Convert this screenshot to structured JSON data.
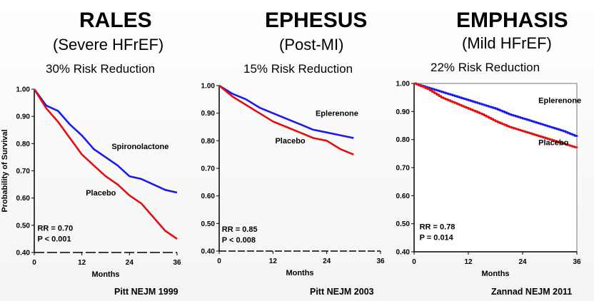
{
  "panels": [
    {
      "title": "RALES",
      "subtitle": "(Severe HFrEF)",
      "risk": "30% Risk Reduction",
      "reference": "Pitt NEJM 1999"
    },
    {
      "title": "EPHESUS",
      "subtitle": "(Post-MI)",
      "risk": "15% Risk Reduction",
      "reference": "Pitt NEJM 2003"
    },
    {
      "title": "EMPHASIS",
      "subtitle": "(Mild HFrEF)",
      "risk": "22% Risk Reduction",
      "reference": "Zannad NEJM 2011"
    }
  ],
  "colors": {
    "treatment": "#1a1aee",
    "placebo": "#e01010",
    "background": "#ffffff"
  },
  "chart_data": [
    {
      "type": "line",
      "title": "RALES",
      "xlabel": "Months",
      "ylabel": "Probability of Survival",
      "xlim": [
        0,
        36
      ],
      "ylim": [
        0.4,
        1.0
      ],
      "xticks": [
        "0",
        "12",
        "24",
        "36"
      ],
      "yticks": [
        "0.40",
        "0.50",
        "0.60",
        "0.70",
        "0.80",
        "0.90",
        "1.00"
      ],
      "series": [
        {
          "name": "Spironolactone",
          "x": [
            0,
            3,
            6,
            9,
            12,
            15,
            18,
            21,
            24,
            27,
            30,
            33,
            36
          ],
          "y": [
            1.0,
            0.94,
            0.92,
            0.87,
            0.83,
            0.78,
            0.75,
            0.72,
            0.68,
            0.67,
            0.65,
            0.63,
            0.62
          ]
        },
        {
          "name": "Placebo",
          "x": [
            0,
            3,
            6,
            9,
            12,
            15,
            18,
            21,
            24,
            27,
            30,
            33,
            36
          ],
          "y": [
            1.0,
            0.93,
            0.88,
            0.82,
            0.76,
            0.72,
            0.68,
            0.65,
            0.61,
            0.58,
            0.53,
            0.48,
            0.45
          ]
        }
      ],
      "annotations": [
        "RR = 0.70",
        "P < 0.001"
      ]
    },
    {
      "type": "line",
      "title": "EPHESUS",
      "xlabel": "Months",
      "ylabel": "",
      "xlim": [
        0,
        36
      ],
      "ylim": [
        0.4,
        1.0
      ],
      "xticks": [
        "0",
        "12",
        "24",
        "36"
      ],
      "yticks": [
        "0.40",
        "0.50",
        "0.60",
        "0.70",
        "0.80",
        "0.90",
        "1.00"
      ],
      "series": [
        {
          "name": "Eplerenone",
          "x": [
            0,
            3,
            6,
            9,
            12,
            15,
            18,
            21,
            24,
            27,
            30
          ],
          "y": [
            1.0,
            0.97,
            0.95,
            0.92,
            0.9,
            0.88,
            0.86,
            0.84,
            0.83,
            0.82,
            0.81
          ]
        },
        {
          "name": "Placebo",
          "x": [
            0,
            3,
            6,
            9,
            12,
            15,
            18,
            21,
            24,
            27,
            30
          ],
          "y": [
            1.0,
            0.96,
            0.93,
            0.9,
            0.87,
            0.85,
            0.83,
            0.81,
            0.8,
            0.77,
            0.75
          ]
        }
      ],
      "annotations": [
        "RR = 0.85",
        "P < 0.008"
      ]
    },
    {
      "type": "line",
      "title": "EMPHASIS",
      "xlabel": "Months",
      "ylabel": "",
      "xlim": [
        0,
        36
      ],
      "ylim": [
        0.4,
        1.0
      ],
      "xticks": [
        "0",
        "12",
        "24",
        "36"
      ],
      "yticks": [
        "0.40",
        "0.50",
        "0.60",
        "0.70",
        "0.80",
        "0.90",
        "1.00"
      ],
      "series": [
        {
          "name": "Eplerenone",
          "x": [
            0,
            3,
            6,
            9,
            12,
            15,
            18,
            21,
            24,
            27,
            30,
            33,
            36
          ],
          "y": [
            1.0,
            0.985,
            0.97,
            0.955,
            0.94,
            0.925,
            0.91,
            0.89,
            0.875,
            0.86,
            0.845,
            0.83,
            0.81
          ]
        },
        {
          "name": "Placebo",
          "x": [
            0,
            3,
            6,
            9,
            12,
            15,
            18,
            21,
            24,
            27,
            30,
            33,
            36
          ],
          "y": [
            1.0,
            0.98,
            0.95,
            0.93,
            0.91,
            0.89,
            0.865,
            0.845,
            0.83,
            0.815,
            0.8,
            0.785,
            0.77
          ]
        }
      ],
      "annotations": [
        "RR = 0.78",
        "P = 0.014"
      ]
    }
  ]
}
